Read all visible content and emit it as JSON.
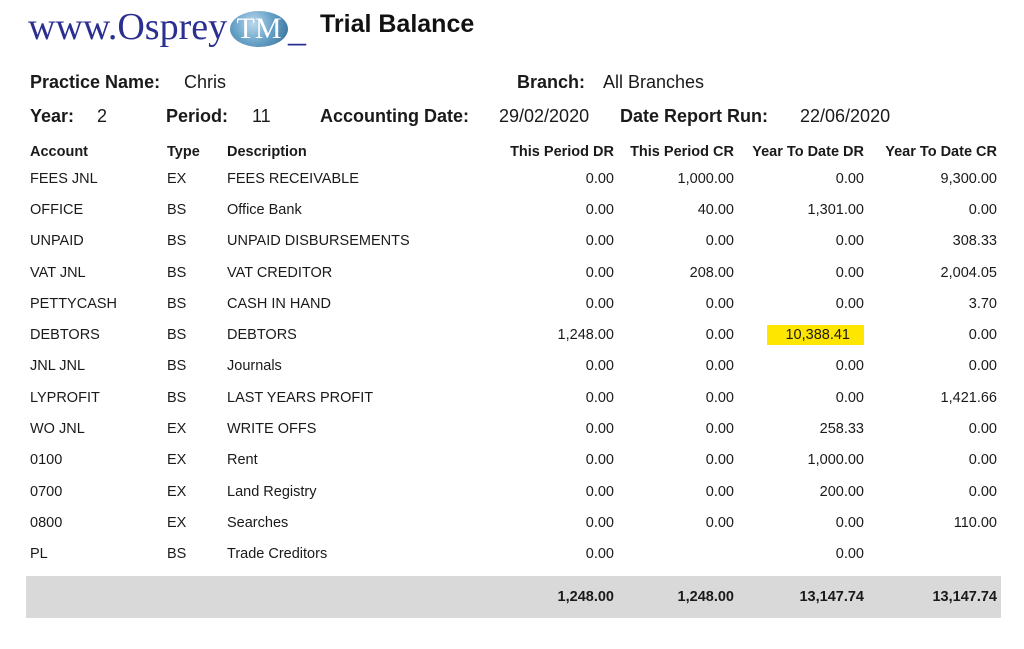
{
  "logo": {
    "text": "www.Osprey",
    "badge": "TM",
    "tail": "_"
  },
  "report": {
    "title": "Trial Balance"
  },
  "header": {
    "practice_label": "Practice Name:",
    "practice_value": "Chris",
    "branch_label": "Branch:",
    "branch_value": "All Branches",
    "year_label": "Year:",
    "year_value": "2",
    "period_label": "Period:",
    "period_value": "11",
    "accounting_date_label": "Accounting Date:",
    "accounting_date_value": "29/02/2020",
    "report_run_label": "Date Report Run:",
    "report_run_value": "22/06/2020"
  },
  "table": {
    "columns": [
      "Account",
      "Type",
      "Description",
      "This Period DR",
      "This Period CR",
      "Year To Date DR",
      "Year To Date CR"
    ],
    "rows": [
      [
        "FEES JNL",
        "EX",
        "FEES RECEIVABLE",
        "0.00",
        "1,000.00",
        "0.00",
        "9,300.00"
      ],
      [
        "OFFICE",
        "BS",
        "Office Bank",
        "0.00",
        "40.00",
        "1,301.00",
        "0.00"
      ],
      [
        "UNPAID",
        "BS",
        "UNPAID DISBURSEMENTS",
        "0.00",
        "0.00",
        "0.00",
        "308.33"
      ],
      [
        "VAT JNL",
        "BS",
        "VAT CREDITOR",
        "0.00",
        "208.00",
        "0.00",
        "2,004.05"
      ],
      [
        "PETTYCASH",
        "BS",
        "CASH IN HAND",
        "0.00",
        "0.00",
        "0.00",
        "3.70"
      ],
      [
        "DEBTORS",
        "BS",
        "DEBTORS",
        "1,248.00",
        "0.00",
        "10,388.41",
        "0.00"
      ],
      [
        "JNL JNL",
        "BS",
        "Journals",
        "0.00",
        "0.00",
        "0.00",
        "0.00"
      ],
      [
        "LYPROFIT",
        "BS",
        "LAST YEARS PROFIT",
        "0.00",
        "0.00",
        "0.00",
        "1,421.66"
      ],
      [
        "WO JNL",
        "EX",
        "WRITE OFFS",
        "0.00",
        "0.00",
        "258.33",
        "0.00"
      ],
      [
        "0100",
        "EX",
        "Rent",
        "0.00",
        "0.00",
        "1,000.00",
        "0.00"
      ],
      [
        "0700",
        "EX",
        "Land Registry",
        "0.00",
        "0.00",
        "200.00",
        "0.00"
      ],
      [
        "0800",
        "EX",
        "Searches",
        "0.00",
        "0.00",
        "0.00",
        "110.00"
      ],
      [
        "PL",
        "BS",
        "Trade Creditors",
        "0.00",
        "",
        "0.00",
        ""
      ]
    ],
    "highlight": {
      "row": 5,
      "col": 5,
      "color": "#ffe600"
    },
    "totals": [
      "1,248.00",
      "1,248.00",
      "13,147.74",
      "13,147.74"
    ]
  }
}
